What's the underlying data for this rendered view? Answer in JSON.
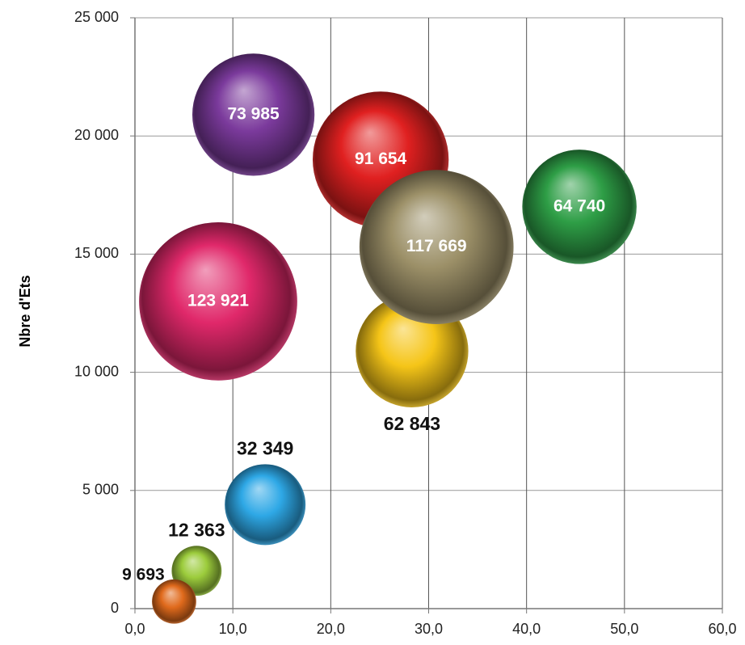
{
  "chart_data": {
    "type": "bubble",
    "ylabel": "Nbre d'Ets",
    "x": [
      12.1,
      25.1,
      45.4,
      8.5,
      28.3,
      30.8,
      13.3,
      6.3,
      4.0
    ],
    "y": [
      20900,
      19000,
      17000,
      13000,
      10900,
      15300,
      4400,
      1600,
      300
    ],
    "sizes": [
      73985,
      91654,
      64740,
      123921,
      62843,
      117669,
      32349,
      12363,
      9693
    ],
    "value_labels": [
      "73 985",
      "91 654",
      "64 740",
      "123 921",
      "62 843",
      "117 669",
      "32 349",
      "12 363",
      "9 693"
    ],
    "colors": [
      "#7b3a9c",
      "#e02020",
      "#2e9e46",
      "#e0286a",
      "#f5c518",
      "#9c9068",
      "#2ea8e6",
      "#9ccc3c",
      "#e06a1c"
    ],
    "label_positions": [
      "inside",
      "inside",
      "inside",
      "inside",
      "below",
      "inside",
      "above",
      "above",
      "above-left"
    ],
    "xlim": [
      0,
      60
    ],
    "xticks": [
      {
        "value": 0,
        "label": "0,0"
      },
      {
        "value": 10,
        "label": "10,0"
      },
      {
        "value": 20,
        "label": "20,0"
      },
      {
        "value": 30,
        "label": "30,0"
      },
      {
        "value": 40,
        "label": "40,0"
      },
      {
        "value": 50,
        "label": "50,0"
      },
      {
        "value": 60,
        "label": "60,0"
      }
    ],
    "ylim": [
      0,
      25000
    ],
    "yticks": [
      0,
      {
        "value": 5000,
        "label": "5 000"
      },
      {
        "value": 10000,
        "label": "10 000"
      },
      {
        "value": 15000,
        "label": "15 000"
      },
      {
        "value": 20000,
        "label": "20 000"
      },
      {
        "value": 25000,
        "label": "25 000"
      }
    ],
    "grid": true
  }
}
